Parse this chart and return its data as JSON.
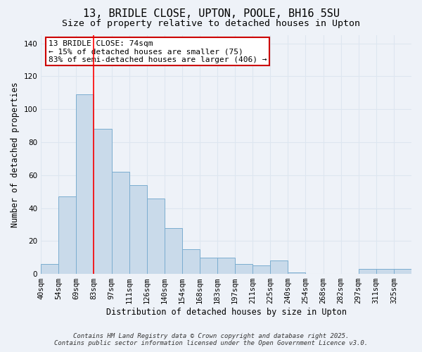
{
  "title": "13, BRIDLE CLOSE, UPTON, POOLE, BH16 5SU",
  "subtitle": "Size of property relative to detached houses in Upton",
  "xlabel": "Distribution of detached houses by size in Upton",
  "ylabel": "Number of detached properties",
  "bar_labels": [
    "40sqm",
    "54sqm",
    "69sqm",
    "83sqm",
    "97sqm",
    "111sqm",
    "126sqm",
    "140sqm",
    "154sqm",
    "168sqm",
    "183sqm",
    "197sqm",
    "211sqm",
    "225sqm",
    "240sqm",
    "254sqm",
    "268sqm",
    "282sqm",
    "297sqm",
    "311sqm",
    "325sqm"
  ],
  "bar_values": [
    6,
    47,
    109,
    88,
    62,
    54,
    46,
    28,
    15,
    10,
    10,
    6,
    5,
    8,
    1,
    0,
    0,
    0,
    3,
    3,
    3
  ],
  "bar_color": "#c9daea",
  "bar_edge_color": "#7badd0",
  "red_line_x": 2,
  "ylim": [
    0,
    145
  ],
  "yticks": [
    0,
    20,
    40,
    60,
    80,
    100,
    120,
    140
  ],
  "annotation_title": "13 BRIDLE CLOSE: 74sqm",
  "annotation_line1": "← 15% of detached houses are smaller (75)",
  "annotation_line2": "83% of semi-detached houses are larger (406) →",
  "annotation_box_facecolor": "#ffffff",
  "annotation_box_edgecolor": "#cc0000",
  "footer_line1": "Contains HM Land Registry data © Crown copyright and database right 2025.",
  "footer_line2": "Contains public sector information licensed under the Open Government Licence v3.0.",
  "background_color": "#eef2f8",
  "grid_color": "#dde6f0",
  "title_fontsize": 11,
  "subtitle_fontsize": 9.5,
  "axis_label_fontsize": 8.5,
  "tick_fontsize": 7.5,
  "annotation_fontsize": 8,
  "footer_fontsize": 6.5
}
